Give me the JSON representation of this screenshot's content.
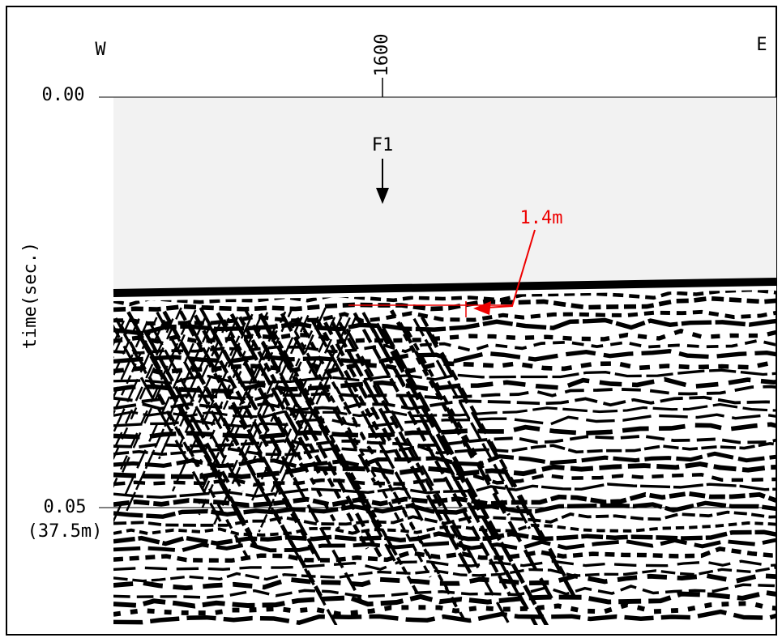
{
  "header": {
    "west": "W",
    "east": "E",
    "distance_tick": "1600"
  },
  "axis": {
    "label": "time(sec.)",
    "ticks": [
      "0.00",
      "0.05"
    ],
    "depth_note": "(37.5m)"
  },
  "annotations": {
    "fault": "F1",
    "offset": "1.4m"
  }
}
